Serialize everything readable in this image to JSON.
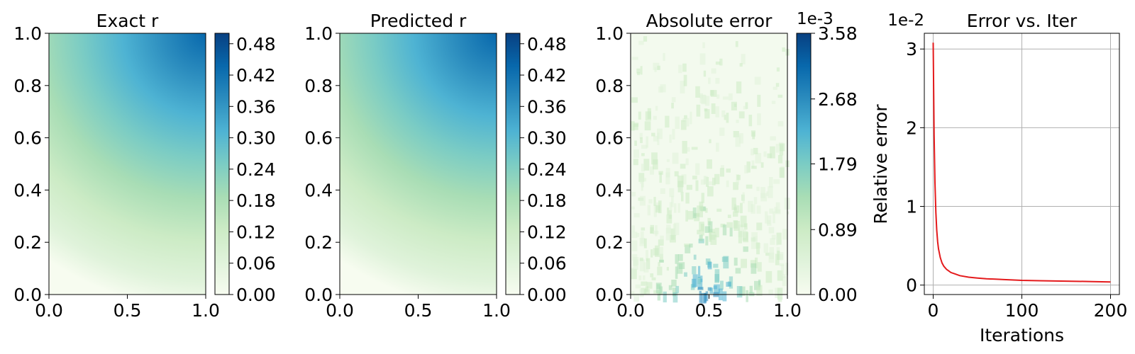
{
  "chart_data": [
    {
      "type": "heatmap",
      "title": "Exact r",
      "xlim": [
        0,
        1
      ],
      "ylim": [
        0,
        1
      ],
      "xticks": [
        "0.0",
        "0.5",
        "1.0"
      ],
      "yticks": [
        "0.0",
        "0.2",
        "0.4",
        "0.6",
        "0.8",
        "1.0"
      ],
      "colormap": "GnBu",
      "colorbar": {
        "range": [
          0,
          0.5
        ],
        "ticks": [
          "0.00",
          "0.06",
          "0.12",
          "0.18",
          "0.24",
          "0.30",
          "0.36",
          "0.42",
          "0.48"
        ],
        "offset_label": ""
      }
    },
    {
      "type": "heatmap",
      "title": "Predicted r",
      "xlim": [
        0,
        1
      ],
      "ylim": [
        0,
        1
      ],
      "xticks": [
        "0.0",
        "0.5",
        "1.0"
      ],
      "yticks": [
        "0.0",
        "0.2",
        "0.4",
        "0.6",
        "0.8",
        "1.0"
      ],
      "colormap": "GnBu",
      "colorbar": {
        "range": [
          0,
          0.5
        ],
        "ticks": [
          "0.00",
          "0.06",
          "0.12",
          "0.18",
          "0.24",
          "0.30",
          "0.36",
          "0.42",
          "0.48"
        ],
        "offset_label": ""
      }
    },
    {
      "type": "heatmap",
      "title": "Absolute error",
      "xlim": [
        0,
        1
      ],
      "ylim": [
        0,
        1
      ],
      "xticks": [
        "0.0",
        "0.5",
        "1.0"
      ],
      "yticks": [
        "0.0",
        "0.2",
        "0.4",
        "0.6",
        "0.8",
        "1.0"
      ],
      "colormap": "GnBu",
      "colorbar": {
        "range": [
          0,
          3.58
        ],
        "ticks": [
          "0.00",
          "0.89",
          "1.79",
          "2.68",
          "3.58"
        ],
        "offset_label": "1e-3"
      }
    },
    {
      "type": "line",
      "title": "Error vs. Iter",
      "xlabel": "Iterations",
      "ylabel": "Relative error",
      "offset_label": "1e-2",
      "xlim": [
        -10,
        210
      ],
      "ylim": [
        -0.12,
        3.2
      ],
      "xticks": [
        "0",
        "100",
        "200"
      ],
      "yticks": [
        "0",
        "1",
        "2",
        "3"
      ],
      "grid": true,
      "line_color": "#e41a1c",
      "series": [
        {
          "x": [
            0,
            1,
            2,
            3,
            4,
            5,
            6,
            8,
            10,
            12,
            15,
            20,
            25,
            30,
            40,
            50,
            60,
            70,
            80,
            100,
            120,
            150,
            180,
            200
          ],
          "y": [
            3.08,
            1.9,
            1.3,
            0.92,
            0.7,
            0.55,
            0.46,
            0.35,
            0.28,
            0.24,
            0.2,
            0.16,
            0.14,
            0.12,
            0.1,
            0.09,
            0.08,
            0.075,
            0.07,
            0.06,
            0.055,
            0.05,
            0.045,
            0.04
          ]
        }
      ]
    }
  ]
}
